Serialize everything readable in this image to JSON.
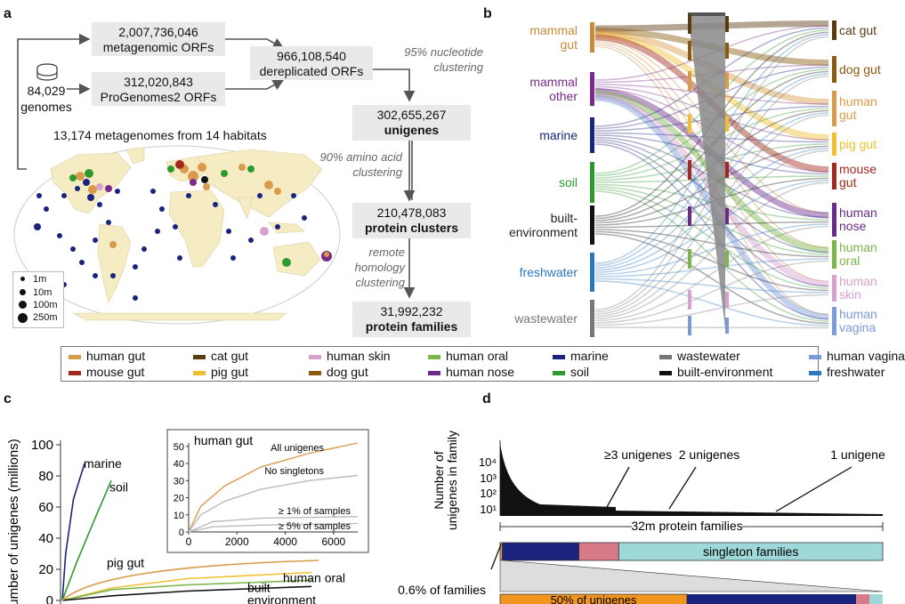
{
  "panels": {
    "a": "a",
    "b": "b",
    "c": "c",
    "d": "d"
  },
  "panel_a": {
    "metagenomic_orfs_count": "2,007,736,046",
    "metagenomic_orfs_label": "metagenomic ORFs",
    "progenomes_count": "312,020,843",
    "progenomes_label": "ProGenomes2 ORFs",
    "genomes_count": "84,029",
    "genomes_label": "genomes",
    "dereplicated_count": "966,108,540",
    "dereplicated_label": "dereplicated ORFs",
    "nt_clustering_line1": "95% nucleotide",
    "nt_clustering_line2": "clustering",
    "unigenes_count": "302,655,267",
    "unigenes_label": "unigenes",
    "aa_clustering_line1": "90% amino acid",
    "aa_clustering_line2": "clustering",
    "protein_clusters_count": "210,478,083",
    "protein_clusters_label": "protein clusters",
    "remote_line1": "remote",
    "remote_line2": "homology",
    "remote_line3": "clustering",
    "families_count": "31,992,232",
    "families_label": "protein families",
    "map_title": "13,174 metagenomes from 14 habitats",
    "size_legend": [
      "1m",
      "10m",
      "100m",
      "250m"
    ]
  },
  "colors": {
    "human_gut": "#d99a4a",
    "mouse_gut": "#a3281d",
    "cat_gut": "#5a3a10",
    "pig_gut": "#f0c030",
    "human_skin": "#d8a0d0",
    "dog_gut": "#8a5a10",
    "human_oral": "#7ab648",
    "human_nose": "#6a2a8a",
    "marine": "#1a237e",
    "soil": "#2e9a2e",
    "wastewater": "#777777",
    "built_environment": "#111111",
    "human_vagina": "#7a9ad8",
    "freshwater": "#2a78c0",
    "mammal_gut": "#c98a3a",
    "mammal_other": "#7a2a8a",
    "land": "#f6ecc4",
    "ocean": "#ffffff",
    "grey_box": "#e9e9e9"
  },
  "panel_b": {
    "left_labels": [
      {
        "key": "mammal_gut",
        "lines": [
          "mammal",
          "gut"
        ]
      },
      {
        "key": "mammal_other",
        "lines": [
          "mammal",
          "other"
        ]
      },
      {
        "key": "marine",
        "lines": [
          "marine"
        ]
      },
      {
        "key": "soil",
        "lines": [
          "soil"
        ]
      },
      {
        "key": "built_environment",
        "lines": [
          "built-",
          "environment"
        ]
      },
      {
        "key": "freshwater",
        "lines": [
          "freshwater"
        ]
      },
      {
        "key": "wastewater",
        "lines": [
          "wastewater"
        ]
      }
    ],
    "right_labels": [
      {
        "key": "cat_gut",
        "lines": [
          "cat gut"
        ]
      },
      {
        "key": "dog_gut",
        "lines": [
          "dog gut"
        ]
      },
      {
        "key": "human_gut",
        "lines": [
          "human",
          "gut"
        ]
      },
      {
        "key": "pig_gut",
        "lines": [
          "pig gut"
        ]
      },
      {
        "key": "mouse_gut",
        "lines": [
          "mouse",
          "gut"
        ]
      },
      {
        "key": "human_nose",
        "lines": [
          "human",
          "nose"
        ]
      },
      {
        "key": "human_oral",
        "lines": [
          "human",
          "oral"
        ]
      },
      {
        "key": "human_skin",
        "lines": [
          "human",
          "skin"
        ]
      },
      {
        "key": "human_vagina",
        "lines": [
          "human",
          "vagina"
        ]
      }
    ]
  },
  "legend": [
    {
      "label": "human gut",
      "key": "human_gut"
    },
    {
      "label": "cat gut",
      "key": "cat_gut"
    },
    {
      "label": "human skin",
      "key": "human_skin"
    },
    {
      "label": "human oral",
      "key": "human_oral"
    },
    {
      "label": "marine",
      "key": "marine"
    },
    {
      "label": "wastewater",
      "key": "wastewater"
    },
    {
      "label": "human vagina",
      "key": "human_vagina"
    },
    {
      "label": "mouse gut",
      "key": "mouse_gut"
    },
    {
      "label": "pig gut",
      "key": "pig_gut"
    },
    {
      "label": "dog gut",
      "key": "dog_gut"
    },
    {
      "label": "human nose",
      "key": "human_nose"
    },
    {
      "label": "soil",
      "key": "soil"
    },
    {
      "label": "built-environment",
      "key": "built_environment"
    },
    {
      "label": "freshwater",
      "key": "freshwater"
    }
  ],
  "chart_data": [
    {
      "type": "line",
      "panel": "c",
      "ylabel": "umber of unigenes (millions)",
      "ylim": [
        0,
        100
      ],
      "yticks": [
        0,
        20,
        40,
        60,
        80,
        100
      ],
      "series": [
        {
          "name": "marine",
          "color_key": "marine",
          "x": [
            0,
            0.15,
            0.5,
            1.0
          ],
          "y": [
            0,
            30,
            65,
            88
          ]
        },
        {
          "name": "soil",
          "color_key": "soil",
          "x": [
            0,
            0.3,
            0.7,
            1.0
          ],
          "y": [
            0,
            25,
            55,
            77
          ]
        },
        {
          "name": "pig gut",
          "color_key": "pig_gut",
          "x": [
            0,
            0.2,
            0.5,
            1.0
          ],
          "y": [
            0,
            8,
            14,
            18
          ]
        },
        {
          "name": "human oral",
          "color_key": "human_oral",
          "x": [
            0,
            0.2,
            0.5,
            1.0
          ],
          "y": [
            0,
            7,
            10,
            13
          ]
        },
        {
          "name": "built environment",
          "color_key": "built_environment",
          "x": [
            0,
            0.2,
            0.5,
            1.0
          ],
          "y": [
            0,
            3,
            6,
            9
          ]
        }
      ],
      "inset": {
        "title": "human gut",
        "xticks": [
          0,
          2000,
          4000,
          6000
        ],
        "yticks": [
          0,
          10,
          20,
          30,
          40,
          50
        ],
        "xlim": [
          0,
          7000
        ],
        "ylim": [
          0,
          52
        ],
        "series": [
          {
            "name": "All unigenes",
            "x": [
              0,
              500,
              1500,
              3000,
              5000,
              7000
            ],
            "y": [
              0,
              15,
              27,
              38,
              46,
              52
            ]
          },
          {
            "name": "No singletons",
            "x": [
              0,
              500,
              1500,
              3000,
              5000,
              7000
            ],
            "y": [
              0,
              10,
              18,
              25,
              30,
              33
            ]
          },
          {
            "name": "≥ 1% of samples",
            "x": [
              0,
              1000,
              3000,
              7000
            ],
            "y": [
              0,
              6,
              8,
              9
            ]
          },
          {
            "name": "≥ 5% of samples",
            "x": [
              0,
              1000,
              3000,
              7000
            ],
            "y": [
              0,
              3,
              4,
              5
            ]
          }
        ]
      }
    },
    {
      "type": "bar",
      "panel": "d",
      "ylabel_line1": "Number of",
      "ylabel_line2": "unigenes in family",
      "yticks": [
        "10⁴",
        "10³",
        "10²",
        "10¹"
      ],
      "annotations": {
        "three_plus": "≥3 unigenes",
        "two": "2 unigenes",
        "one": "1 unigene"
      },
      "xaxis_label": "32m protein families",
      "bar_segments": [
        {
          "label": "",
          "color": "#d99a4a",
          "fraction": 0.006
        },
        {
          "label": "",
          "color": "#1a237e",
          "fraction": 0.2
        },
        {
          "label": "",
          "color": "#d97a8a",
          "fraction": 0.104
        },
        {
          "label": "singleton families",
          "color": "#9fd8d8",
          "fraction": 0.69
        }
      ],
      "lower_annotation": "0.6% of families",
      "lower_bar_label": "50% of unigenes"
    }
  ]
}
